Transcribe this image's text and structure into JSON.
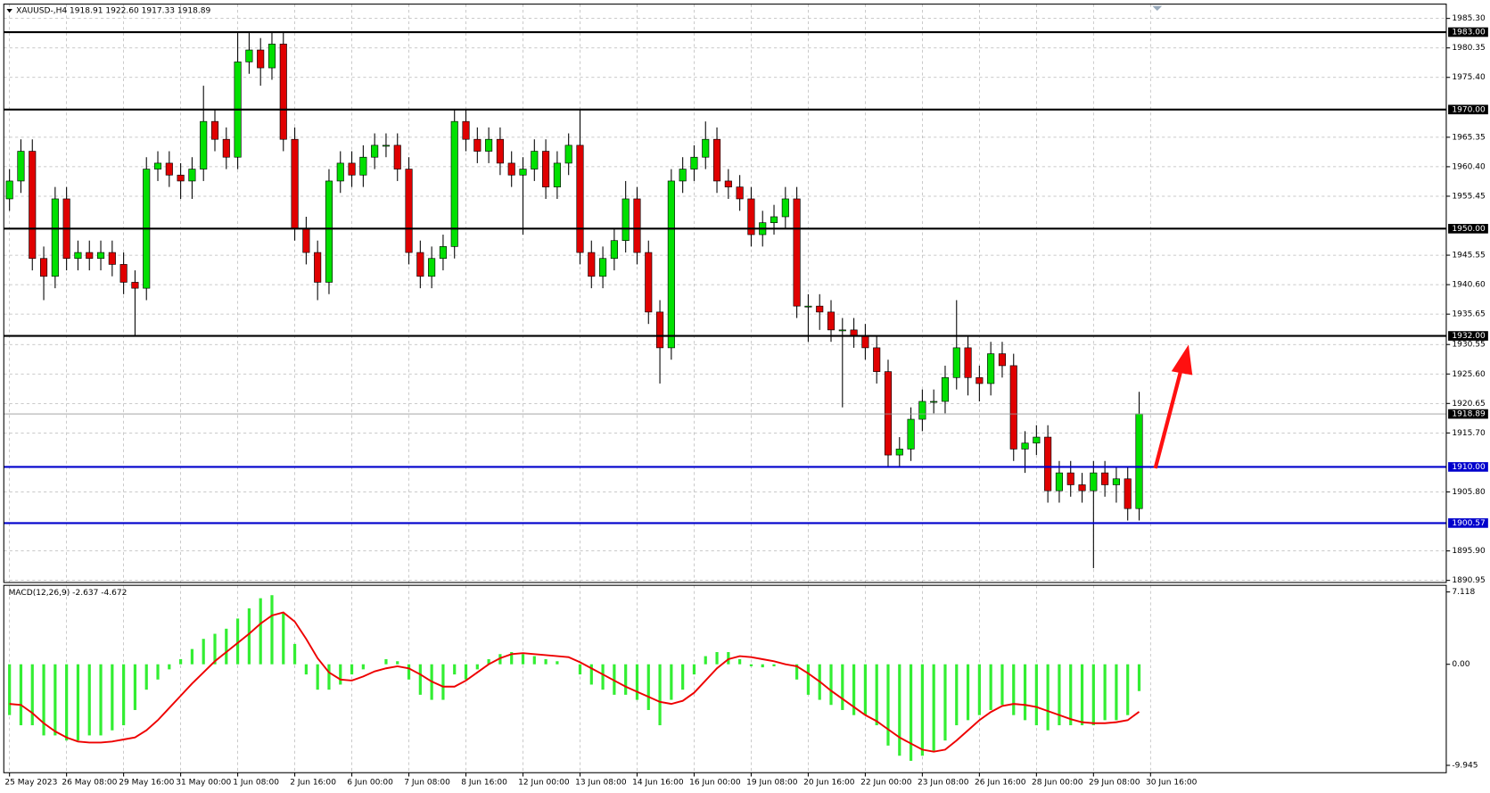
{
  "chart_data": {
    "type": "candlestick",
    "title": "XAUUSD-,H4  1918.91 1922.60 1917.33 1918.89",
    "categories": [
      "25 May 2023",
      null,
      null,
      null,
      null,
      "26 May 08:00",
      null,
      null,
      null,
      null,
      "29 May 16:00",
      null,
      null,
      null,
      null,
      "31 May 00:00",
      null,
      null,
      null,
      null,
      "1 Jun 08:00",
      null,
      null,
      null,
      null,
      "2 Jun 16:00",
      null,
      null,
      null,
      null,
      "6 Jun 00:00",
      null,
      null,
      null,
      null,
      "7 Jun 08:00",
      null,
      null,
      null,
      null,
      "8 Jun 16:00",
      null,
      null,
      null,
      null,
      "12 Jun 00:00",
      null,
      null,
      null,
      null,
      "13 Jun 08:00",
      null,
      null,
      null,
      null,
      "14 Jun 16:00",
      null,
      null,
      null,
      null,
      "16 Jun 00:00",
      null,
      null,
      null,
      null,
      "19 Jun 08:00",
      null,
      null,
      null,
      null,
      "20 Jun 16:00",
      null,
      null,
      null,
      null,
      "22 Jun 00:00",
      null,
      null,
      null,
      null,
      "23 Jun 08:00",
      null,
      null,
      null,
      null,
      "26 Jun 16:00",
      null,
      null,
      null,
      null,
      "28 Jun 00:00",
      null,
      null,
      null,
      null,
      "29 Jun 08:00",
      null,
      null,
      null,
      null,
      "30 Jun 16:00"
    ],
    "open": [
      1955,
      1958,
      1963,
      1945,
      1942,
      1955,
      1945,
      1946,
      1945,
      1946,
      1944,
      1941,
      1940,
      1960,
      1961,
      1959,
      1958,
      1960,
      1968,
      1965,
      1962,
      1978,
      1980,
      1977,
      1981,
      1965,
      1950,
      1946,
      1941,
      1958,
      1961,
      1959,
      1962,
      1964,
      1964,
      1960,
      1946,
      1942,
      1945,
      1947,
      1968,
      1965,
      1963,
      1965,
      1961,
      1959,
      1960,
      1963,
      1957,
      1961,
      1964,
      1946,
      1942,
      1945,
      1948,
      1955,
      1946,
      1936,
      1930,
      1958,
      1960,
      1962,
      1965,
      1958,
      1957,
      1955,
      1949,
      1951,
      1952,
      1955,
      1937,
      1937,
      1936,
      1933,
      1933,
      1932,
      1930,
      1926,
      1912,
      1913,
      1918,
      1921,
      1921,
      1925,
      1930,
      1925,
      1924,
      1929,
      1927,
      1913,
      1914,
      1915,
      1906,
      1909,
      1907,
      1906,
      1909,
      1907,
      1908,
      1903,
      null
    ],
    "high": [
      1960,
      1965,
      1965,
      1947,
      1957,
      1957,
      1948,
      1948,
      1948,
      1948,
      1946,
      1943,
      1962,
      1963,
      1963,
      1961,
      1962,
      1974,
      1970,
      1967,
      1983,
      1983,
      1982,
      1983,
      1983,
      1967,
      1952,
      1948,
      1960,
      1963,
      1963,
      1964,
      1966,
      1966,
      1966,
      1962,
      1948,
      1947,
      1949,
      1970,
      1970,
      1967,
      1967,
      1967,
      1963,
      1962,
      1965,
      1965,
      1963,
      1966,
      1970,
      1948,
      1947,
      1950,
      1958,
      1957,
      1948,
      1938,
      1960,
      1962,
      1964,
      1968,
      1967,
      1960,
      1959,
      1957,
      1953,
      1954,
      1957,
      1957,
      1939,
      1939,
      1938,
      1935,
      1935,
      1934,
      1932,
      1928,
      1915,
      1920,
      1923,
      1923,
      1927,
      1938,
      1932,
      1927,
      1931,
      1931,
      1929,
      1916,
      1917,
      1917,
      1911,
      1911,
      1909,
      1911,
      1911,
      1910,
      1910,
      1922.6,
      null
    ],
    "low": [
      1953,
      1956,
      1943,
      1938,
      1940,
      1943,
      1943,
      1943,
      1943,
      1942,
      1939,
      1932,
      1938,
      1958,
      1957,
      1955,
      1955,
      1958,
      1963,
      1960,
      1960,
      1976,
      1974,
      1975,
      1963,
      1948,
      1944,
      1938,
      1939,
      1956,
      1957,
      1957,
      1960,
      1962,
      1958,
      1944,
      1940,
      1940,
      1943,
      1945,
      1963,
      1961,
      1961,
      1959,
      1957,
      1949,
      1958,
      1955,
      1955,
      1959,
      1944,
      1940,
      1940,
      1943,
      1946,
      1944,
      1934,
      1924,
      1928,
      1956,
      1958,
      1960,
      1956,
      1955,
      1953,
      1947,
      1947,
      1949,
      1950,
      1935,
      1931,
      1933,
      1931,
      1920,
      1930,
      1928,
      1924,
      1910,
      1910,
      1911,
      1916,
      1919,
      1919,
      1923,
      1922,
      1921,
      1922,
      1925,
      1911,
      1909,
      1912,
      1904,
      1904,
      1905,
      1904,
      1893,
      1905,
      1904,
      1901,
      1901,
      null
    ],
    "close": [
      1958,
      1963,
      1945,
      1942,
      1955,
      1945,
      1946,
      1945,
      1946,
      1944,
      1941,
      1940,
      1960,
      1961,
      1959,
      1958,
      1960,
      1968,
      1965,
      1962,
      1978,
      1980,
      1977,
      1981,
      1965,
      1950,
      1946,
      1941,
      1958,
      1961,
      1959,
      1962,
      1964,
      1964,
      1960,
      1946,
      1942,
      1945,
      1947,
      1968,
      1965,
      1963,
      1965,
      1961,
      1959,
      1960,
      1963,
      1957,
      1961,
      1964,
      1946,
      1942,
      1945,
      1948,
      1955,
      1946,
      1936,
      1930,
      1958,
      1960,
      1962,
      1965,
      1958,
      1957,
      1955,
      1949,
      1951,
      1952,
      1955,
      1937,
      1937,
      1936,
      1933,
      1933,
      1932,
      1930,
      1926,
      1912,
      1913,
      1918,
      1921,
      1921,
      1925,
      1930,
      1925,
      1924,
      1929,
      1927,
      1913,
      1914,
      1915,
      1906,
      1909,
      1907,
      1906,
      1909,
      1907,
      1908,
      1903,
      1918.89,
      null
    ],
    "up_color": "#00e000",
    "down_color": "#e00000",
    "ylim": [
      1890.6,
      1987.7
    ],
    "yticks": [
      {
        "value": 1985.3,
        "label": "1985.30"
      },
      1980.35,
      {
        "value": 1975.4,
        "label": "1975.40"
      },
      1965.35,
      {
        "value": 1960.4,
        "label": "1960.40"
      },
      1955.45,
      1945.55,
      {
        "value": 1940.6,
        "label": "1940.60"
      },
      1935.65,
      1930.55,
      {
        "value": 1925.6,
        "label": "1925.60"
      },
      1920.65,
      {
        "value": 1915.7,
        "label": "1915.70"
      },
      {
        "value": 1905.8,
        "label": "1905.80"
      },
      {
        "value": 1895.9,
        "label": "1895.90"
      },
      1890.95
    ],
    "grid": true,
    "levels": [
      {
        "price": 1983,
        "label": "1983.00",
        "color": "#000000"
      },
      {
        "price": 1970,
        "label": "1970.00",
        "color": "#000000"
      },
      {
        "price": 1950,
        "label": "1950.00",
        "color": "#000000"
      },
      {
        "price": 1932,
        "label": "1932.00",
        "color": "#000000"
      },
      {
        "price": 1910,
        "label": "1910.00",
        "color": "#0000cc"
      },
      {
        "price": 1900.57,
        "color": "#0000cc"
      }
    ],
    "current_price": 1918.89,
    "indicator": {
      "type": "macd",
      "title": "MACD(12,26,9) -2.637 -4.672",
      "histogram": {
        "color": "#33ee33",
        "values": [
          -5,
          -6,
          -6,
          -7,
          -7,
          -7.5,
          -7.5,
          -7,
          -7,
          -6.5,
          -6,
          -4.5,
          -2.5,
          -1.5,
          -0.5,
          0.5,
          1.5,
          2.5,
          3,
          3.5,
          4.5,
          5.5,
          6.5,
          6.8,
          5,
          2,
          -1,
          -2.5,
          -2.5,
          -2,
          -1,
          -0.5,
          0,
          0.5,
          0.3,
          -1.5,
          -3,
          -3.5,
          -3.5,
          -1,
          -1.5,
          -0.5,
          0.5,
          1,
          1.2,
          1,
          0.8,
          0.5,
          0.3,
          0,
          -1,
          -2,
          -2.5,
          -3,
          -3,
          -3.5,
          -4.5,
          -6,
          -3.5,
          -2.5,
          -1,
          0.8,
          1.2,
          1.2,
          0.5,
          -0.2,
          -0.3,
          -0.2,
          0,
          -1.5,
          -3,
          -3.5,
          -4,
          -4.5,
          -5,
          -5,
          -6,
          -8,
          -9,
          -9.5,
          -9,
          -8.5,
          -7.5,
          -6,
          -5.5,
          -5,
          -4.5,
          -4,
          -5,
          -5.5,
          -6,
          -6.5,
          -6,
          -6,
          -6,
          -6,
          -5.5,
          -5.5,
          -5,
          -2.637,
          null
        ]
      },
      "signal": {
        "color": "#ee0000",
        "values": [
          -3.9,
          -4,
          -4.8,
          -5.8,
          -6.6,
          -7.2,
          -7.6,
          -7.7,
          -7.7,
          -7.6,
          -7.4,
          -7.2,
          -6.5,
          -5.5,
          -4.3,
          -3.1,
          -1.9,
          -0.8,
          0.3,
          1.2,
          2.1,
          3,
          4,
          4.8,
          5.1,
          4.2,
          2.5,
          0.6,
          -0.8,
          -1.5,
          -1.6,
          -1.2,
          -0.7,
          -0.4,
          -0.2,
          -0.4,
          -1,
          -1.7,
          -2.2,
          -2.2,
          -1.6,
          -0.8,
          0,
          0.6,
          1,
          1.1,
          1,
          0.9,
          0.8,
          0.7,
          0.2,
          -0.4,
          -1,
          -1.6,
          -2.2,
          -2.7,
          -3.2,
          -3.7,
          -3.9,
          -3.6,
          -2.8,
          -1.6,
          -0.4,
          0.5,
          0.8,
          0.7,
          0.5,
          0.3,
          0,
          -0.2,
          -0.9,
          -1.7,
          -2.6,
          -3.4,
          -4.2,
          -5,
          -5.6,
          -6.4,
          -7.2,
          -7.8,
          -8.4,
          -8.6,
          -8.4,
          -7.5,
          -6.5,
          -5.5,
          -4.7,
          -4.1,
          -3.9,
          -4,
          -4.2,
          -4.6,
          -5,
          -5.4,
          -5.7,
          -5.8,
          -5.8,
          -5.7,
          -5.5,
          -4.672,
          null
        ]
      },
      "ylim": [
        -10.67,
        7.77
      ],
      "yticks": [
        7.118,
        {
          "value": 0,
          "label": "0.00"
        },
        -9.945
      ]
    }
  }
}
